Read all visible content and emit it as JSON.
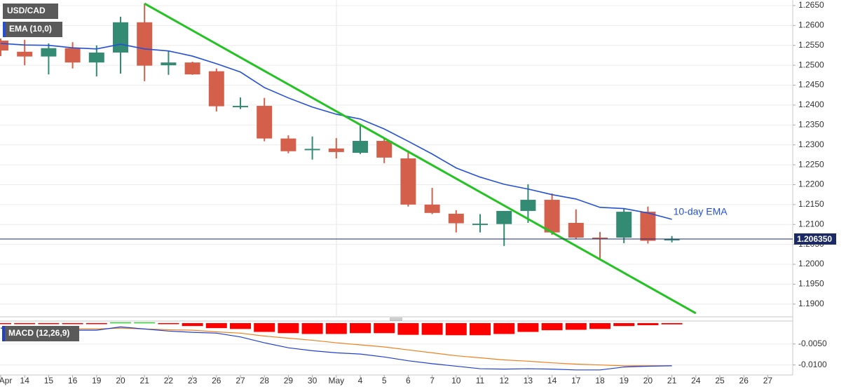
{
  "chart_data": [
    {
      "type": "candlestick",
      "title": "USD/CAD",
      "categories": [
        "Apr",
        "14",
        "15",
        "16",
        "19",
        "20",
        "21",
        "22",
        "23",
        "26",
        "27",
        "28",
        "29",
        "30",
        "May",
        "4",
        "5",
        "6",
        "7",
        "10",
        "11",
        "12",
        "13",
        "14",
        "17",
        "18",
        "19",
        "20",
        "21",
        "24",
        "25",
        "26",
        "27"
      ],
      "open": [
        1.2562,
        1.2534,
        1.2522,
        1.2543,
        1.2507,
        1.2532,
        1.2608,
        1.25,
        1.2507,
        1.2485,
        1.2395,
        1.2398,
        1.2316,
        1.2287,
        1.2291,
        1.228,
        1.231,
        1.2266,
        1.215,
        1.2127,
        1.21,
        1.2101,
        1.2134,
        1.2162,
        1.2104,
        1.2067,
        1.2067,
        1.2132,
        1.2062,
        null,
        null,
        null,
        null
      ],
      "high": [
        1.2567,
        1.2564,
        1.2555,
        1.2558,
        1.255,
        1.2622,
        1.2655,
        1.2536,
        1.2509,
        1.2492,
        1.2419,
        1.2418,
        1.2324,
        1.2321,
        1.2317,
        1.2351,
        1.2317,
        1.2286,
        1.2192,
        1.2136,
        1.2126,
        1.2134,
        1.2201,
        1.2178,
        1.2138,
        1.2081,
        1.214,
        1.2145,
        1.2071,
        null,
        null,
        null,
        null
      ],
      "low": [
        1.2523,
        1.25,
        1.2477,
        1.2492,
        1.2472,
        1.2479,
        1.246,
        1.2476,
        1.2476,
        1.2384,
        1.239,
        1.2309,
        1.2279,
        1.2263,
        1.2266,
        1.2277,
        1.2254,
        1.2145,
        1.2126,
        1.208,
        1.208,
        1.2046,
        1.2104,
        1.2074,
        1.2064,
        1.2013,
        1.2053,
        1.2052,
        1.2055,
        null,
        null,
        null,
        null
      ],
      "close": [
        1.2537,
        1.2522,
        1.2543,
        1.2507,
        1.2532,
        1.2608,
        1.2499,
        1.2507,
        1.2477,
        1.2397,
        1.2398,
        1.2316,
        1.2284,
        1.229,
        1.2282,
        1.231,
        1.2268,
        1.215,
        1.2129,
        1.2103,
        1.2102,
        1.2134,
        1.2162,
        1.208,
        1.2067,
        1.2064,
        1.2132,
        1.2059,
        1.20635,
        null,
        null,
        null,
        null
      ],
      "up_color": "#348b74",
      "down_color": "#d4604b",
      "ylim": [
        1.1868,
        1.2664
      ],
      "yticks": [
        {
          "value": 1.19,
          "label": "1.1900"
        },
        {
          "value": 1.195,
          "label": "1.1950"
        },
        {
          "value": 1.2,
          "label": "1.2000"
        },
        {
          "value": 1.205,
          "label": "1.2050"
        },
        {
          "value": 1.21,
          "label": "1.2100"
        },
        {
          "value": 1.215,
          "label": "1.2150"
        },
        {
          "value": 1.22,
          "label": "1.2200"
        },
        {
          "value": 1.225,
          "label": "1.2250"
        },
        {
          "value": 1.23,
          "label": "1.2300"
        },
        {
          "value": 1.235,
          "label": "1.2350"
        },
        {
          "value": 1.24,
          "label": "1.2400"
        },
        {
          "value": 1.245,
          "label": "1.2450"
        },
        {
          "value": 1.25,
          "label": "1.2500"
        },
        {
          "value": 1.255,
          "label": "1.2550"
        },
        {
          "value": 1.26,
          "label": "1.2600"
        },
        {
          "value": 1.265,
          "label": "1.2650"
        }
      ],
      "grid": true,
      "overlay": {
        "name": "EMA (10,0)",
        "annotation": "10-day EMA",
        "color": "#2451d4",
        "values": [
          1.2555,
          1.2551,
          1.255,
          1.2544,
          1.2541,
          1.2553,
          1.2541,
          1.2536,
          1.2523,
          1.2504,
          1.2483,
          1.2444,
          1.2418,
          1.2395,
          1.2377,
          1.2365,
          1.234,
          1.2309,
          1.2277,
          1.2242,
          1.2219,
          1.2201,
          1.2189,
          1.2175,
          1.2164,
          1.2143,
          1.214,
          1.2129,
          1.2113,
          null,
          null,
          null,
          null
        ]
      },
      "trendline": {
        "x": [
          6,
          29
        ],
        "values": [
          1.2655,
          1.1877
        ],
        "color": "#22c322"
      },
      "last_price": {
        "value": 1.20635,
        "label": "1.206350"
      },
      "last_price_color": "#1b2a66"
    },
    {
      "type": "macd",
      "title": "MACD (12,26,9)",
      "ylim": [
        -0.0124,
        0.0005
      ],
      "yticks": [
        {
          "value": -0.005,
          "label": "-0.0050"
        },
        {
          "value": -0.01,
          "label": "-0.0100"
        }
      ],
      "histogram": {
        "up_color": "#33cc33",
        "down_color": "#ff0000",
        "values": [
          -0.0002,
          -0.0002,
          -0.0002,
          -0.0002,
          -0.0002,
          0.0002,
          0.0002,
          -0.0001,
          -0.0007,
          -0.0012,
          -0.0014,
          -0.0021,
          -0.0024,
          -0.0026,
          -0.0026,
          -0.0024,
          -0.0024,
          -0.0028,
          -0.0028,
          -0.0029,
          -0.0029,
          -0.0026,
          -0.0021,
          -0.0017,
          -0.0016,
          -0.0014,
          -0.0007,
          -0.0005,
          -0.0003,
          null,
          null,
          null,
          null
        ]
      },
      "macd_line": {
        "color": "#2040d0",
        "values": [
          -0.0012,
          -0.0014,
          -0.0014,
          -0.0017,
          -0.0017,
          -0.0009,
          -0.0014,
          -0.0019,
          -0.0022,
          -0.0024,
          -0.0033,
          -0.0047,
          -0.0059,
          -0.0066,
          -0.0071,
          -0.0074,
          -0.0081,
          -0.009,
          -0.0097,
          -0.0103,
          -0.0109,
          -0.011,
          -0.0109,
          -0.011,
          -0.0112,
          -0.0112,
          -0.0105,
          -0.0103,
          -0.0102,
          null,
          null,
          null,
          null
        ]
      },
      "signal_line": {
        "color": "#f08020",
        "values": [
          -0.0012,
          -0.0012,
          -0.0012,
          -0.0014,
          -0.0014,
          -0.0012,
          -0.0014,
          -0.0016,
          -0.0017,
          -0.0021,
          -0.0024,
          -0.0031,
          -0.0036,
          -0.0041,
          -0.0047,
          -0.0052,
          -0.0057,
          -0.0064,
          -0.0071,
          -0.0078,
          -0.0083,
          -0.0088,
          -0.0091,
          -0.0095,
          -0.0098,
          -0.01,
          -0.0102,
          -0.0102,
          -0.0102,
          null,
          null,
          null,
          null
        ]
      }
    }
  ]
}
